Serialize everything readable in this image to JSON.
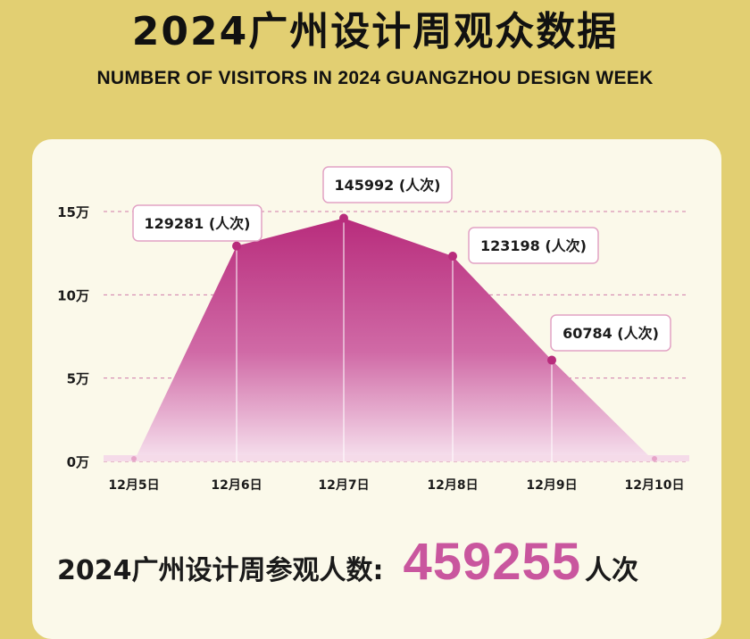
{
  "header": {
    "title": "2024广州设计周观众数据",
    "subtitle": "NUMBER OF VISITORS IN 2024 GUANGZHOU DESIGN WEEK"
  },
  "total": {
    "label": "2024广州设计周参观人数:",
    "value": "459255",
    "unit": "人次"
  },
  "colors": {
    "background": "#e2cf72",
    "card": "#fbf9ea",
    "accent": "#b82c7c",
    "total_number": "#c9569e"
  },
  "chart_data": {
    "type": "area",
    "categories": [
      "12月5日",
      "12月6日",
      "12月7日",
      "12月8日",
      "12月9日",
      "12月10日"
    ],
    "values": [
      0,
      129281,
      145992,
      123198,
      60784,
      0
    ],
    "data_labels": [
      "",
      "129281 (人次)",
      "145992 (人次)",
      "123198 (人次)",
      "60784 (人次)",
      ""
    ],
    "yticks": [
      0,
      50000,
      100000,
      150000
    ],
    "ytick_labels": [
      "0万",
      "5万",
      "10万",
      "15万"
    ],
    "ylim": [
      0,
      150000
    ],
    "grid": true
  }
}
